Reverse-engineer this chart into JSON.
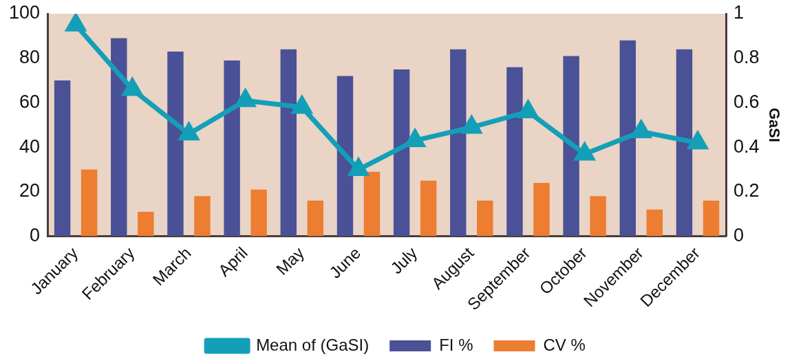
{
  "chart_data": {
    "type": "bar",
    "y2label": "GaSI",
    "categories": [
      "January",
      "February",
      "March",
      "April",
      "May",
      "June",
      "July",
      "August",
      "September",
      "October",
      "November",
      "December"
    ],
    "series": [
      {
        "name": "FI %",
        "color": "#4a5196",
        "values": [
          70,
          89,
          83,
          79,
          84,
          72,
          75,
          84,
          76,
          81,
          88,
          84
        ]
      },
      {
        "name": "CV %",
        "color": "#ed7d31",
        "values": [
          30,
          11,
          18,
          21,
          16,
          29,
          25,
          16,
          24,
          18,
          12,
          16
        ]
      },
      {
        "name": "Mean of (GaSI)",
        "type": "line",
        "axis": "y2",
        "color": "#149fb8",
        "marker": "triangle",
        "values": [
          0.95,
          0.66,
          0.46,
          0.61,
          0.58,
          0.3,
          0.43,
          0.49,
          0.56,
          0.37,
          0.47,
          0.42
        ]
      }
    ],
    "ylim": [
      0,
      100
    ],
    "yticks": [
      0,
      20,
      40,
      60,
      80,
      100
    ],
    "y2lim": [
      0,
      1
    ],
    "y2ticks": [
      0,
      0.2,
      0.4,
      0.6,
      0.8,
      1
    ],
    "grid": false,
    "legend": "bottom"
  }
}
